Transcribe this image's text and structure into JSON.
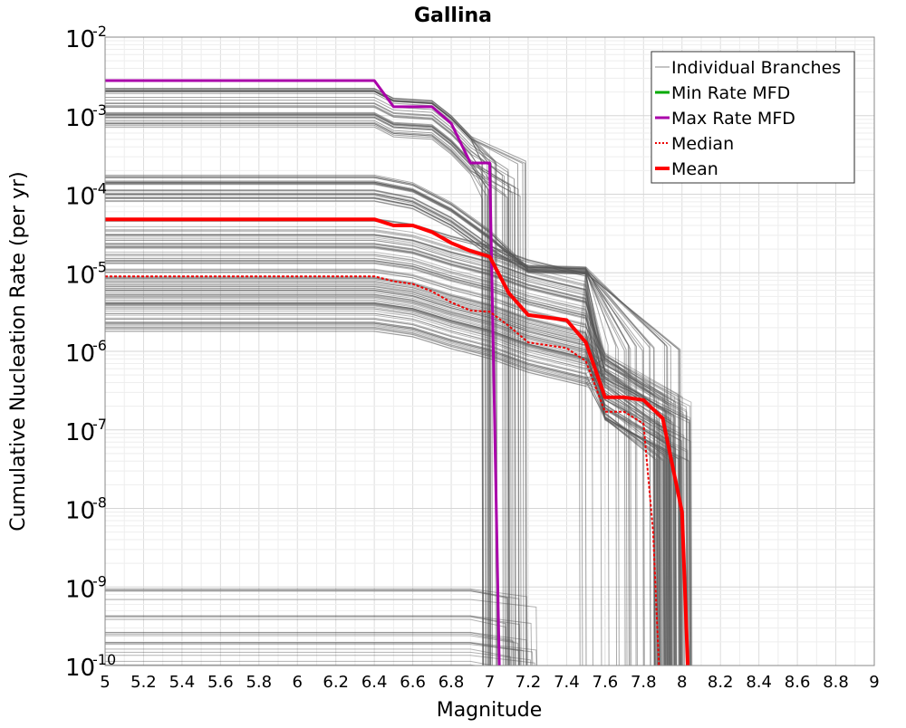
{
  "chart_data": {
    "type": "line",
    "title": "Gallina",
    "xlabel": "Magnitude",
    "ylabel": "Cumulative Nucleation Rate (per yr)",
    "xlim": [
      5,
      9
    ],
    "ylim_log10": [
      -10,
      -2
    ],
    "y_scale": "log",
    "grid": true,
    "legend_position": "top-right",
    "x_ticks": [
      "5",
      "5.2",
      "5.4",
      "5.6",
      "5.8",
      "6",
      "6.2",
      "6.4",
      "6.6",
      "6.8",
      "7",
      "7.2",
      "7.4",
      "7.6",
      "7.8",
      "8",
      "8.2",
      "8.4",
      "8.6",
      "8.8",
      "9"
    ],
    "y_ticks": [
      {
        "base": "10",
        "exp": "-10"
      },
      {
        "base": "10",
        "exp": "-9"
      },
      {
        "base": "10",
        "exp": "-8"
      },
      {
        "base": "10",
        "exp": "-7"
      },
      {
        "base": "10",
        "exp": "-6"
      },
      {
        "base": "10",
        "exp": "-5"
      },
      {
        "base": "10",
        "exp": "-4"
      },
      {
        "base": "10",
        "exp": "-3"
      },
      {
        "base": "10",
        "exp": "-2"
      }
    ],
    "legend": [
      {
        "label": "Individual Branches",
        "color": "#888888",
        "style": "solid",
        "width": 1
      },
      {
        "label": "Min Rate MFD",
        "color": "#00aa00",
        "style": "solid",
        "width": 3
      },
      {
        "label": "Max Rate MFD",
        "color": "#aa00aa",
        "style": "solid",
        "width": 3
      },
      {
        "label": "Median",
        "color": "#ee0000",
        "style": "dotted",
        "width": 2
      },
      {
        "label": "Mean",
        "color": "#ff0000",
        "style": "solid",
        "width": 4
      }
    ],
    "series": [
      {
        "name": "Max Rate MFD",
        "color": "#aa00aa",
        "x": [
          5.0,
          6.4,
          6.5,
          6.7,
          6.8,
          6.9,
          7.0,
          7.05
        ],
        "y": [
          0.0028,
          0.0028,
          0.0013,
          0.0013,
          0.0008,
          0.00025,
          0.00025,
          1e-10
        ]
      },
      {
        "name": "Mean",
        "color": "#ff0000",
        "x": [
          5.0,
          6.4,
          6.5,
          6.6,
          6.7,
          6.8,
          6.9,
          7.0,
          7.1,
          7.2,
          7.4,
          7.5,
          7.6,
          7.7,
          7.8,
          7.9,
          8.0,
          8.03
        ],
        "y": [
          4.8e-05,
          4.8e-05,
          4e-05,
          4e-05,
          3.3e-05,
          2.4e-05,
          1.9e-05,
          1.6e-05,
          5.5e-06,
          2.9e-06,
          2.5e-06,
          1.3e-06,
          2.6e-07,
          2.6e-07,
          2.4e-07,
          1.4e-07,
          9e-09,
          1e-10
        ]
      },
      {
        "name": "Median",
        "color": "#ee0000",
        "x": [
          5.0,
          6.4,
          6.5,
          6.6,
          6.7,
          6.8,
          6.9,
          7.0,
          7.1,
          7.2,
          7.4,
          7.5,
          7.6,
          7.7,
          7.8,
          7.85,
          7.88
        ],
        "y": [
          9e-06,
          9e-06,
          7.8e-06,
          7.2e-06,
          5.8e-06,
          4.2e-06,
          3.3e-06,
          3.2e-06,
          2.1e-06,
          1.3e-06,
          1.1e-06,
          7.5e-07,
          1.7e-07,
          1.7e-07,
          1.2e-07,
          5e-09,
          1e-10
        ]
      }
    ]
  }
}
